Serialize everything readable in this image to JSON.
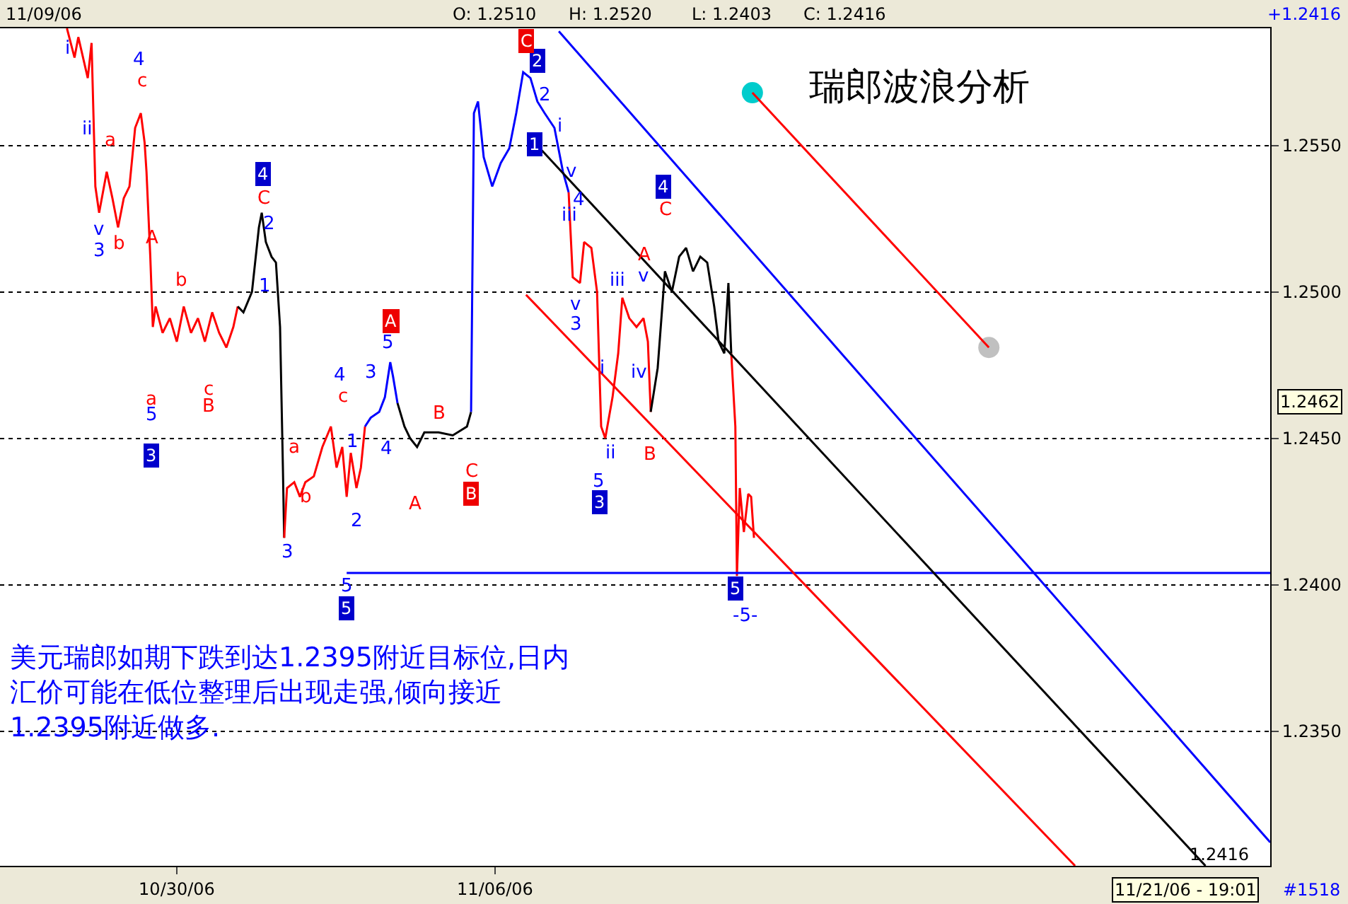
{
  "chart_data": {
    "type": "line",
    "title": "瑞郎波浪分析",
    "xlim": [
      "2006-10-26T02:40",
      "2006-11-23T01:10"
    ],
    "xticks": [
      {
        "value": "2006-10-30",
        "label": "10/30/06"
      },
      {
        "value": "2006-11-06",
        "label": "11/06/06"
      }
    ],
    "ylim": [
      1.2304,
      1.259
    ],
    "yticks": [
      {
        "value": 1.235,
        "label": "1.2350"
      },
      {
        "value": 1.24,
        "label": "1.2400"
      },
      {
        "value": 1.245,
        "label": "1.2450"
      },
      {
        "value": 1.25,
        "label": "1.2500"
      },
      {
        "value": 1.255,
        "label": "1.2550"
      }
    ],
    "grid": "y",
    "line_style": "solid",
    "series": [
      {
        "color": "#ff0000",
        "x": [
          "2006-10-27T14:00",
          "2006-10-27T18:00",
          "2006-10-27T20:00",
          "2006-10-28T01:00",
          "2006-10-28T03:00",
          "2006-10-28T05:00",
          "2006-10-28T07:00",
          "2006-10-28T11:00",
          "2006-10-28T14:00",
          "2006-10-28T17:00",
          "2006-10-28T20:00",
          "2006-10-28T23:00",
          "2006-10-29T02:00",
          "2006-10-29T05:00",
          "2006-10-29T07:00",
          "2006-10-29T08:00",
          "2006-10-29T10:00",
          "2006-10-29T11:20",
          "2006-10-29T12:50",
          "2006-10-29T16:30",
          "2006-10-29T20:20",
          "2006-10-30T00:00",
          "2006-10-30T03:40",
          "2006-10-30T07:30",
          "2006-10-30T11:10",
          "2006-10-30T14:50",
          "2006-10-30T18:40",
          "2006-10-30T22:20",
          "2006-10-31T02:10",
          "2006-10-31T05:50",
          "2006-10-31T08:10"
        ],
        "values": [
          1.259,
          1.258,
          1.2587,
          1.2573,
          1.2585,
          1.2536,
          1.2527,
          1.2541,
          1.2532,
          1.2522,
          1.2532,
          1.2536,
          1.2556,
          1.2561,
          1.2551,
          1.2541,
          1.2512,
          1.2488,
          1.2495,
          1.2486,
          1.2491,
          1.2483,
          1.2495,
          1.2486,
          1.2491,
          1.2483,
          1.2493,
          1.2486,
          1.2481,
          1.2488,
          1.2495
        ]
      },
      {
        "color": "#000000",
        "x": [
          "2006-10-31T08:10",
          "2006-10-31T11:10",
          "2006-10-31T15:40",
          "2006-10-31T19:20",
          "2006-10-31T20:50",
          "2006-10-31T23:00",
          "2006-11-01T02:00",
          "2006-11-01T04:20",
          "2006-11-01T06:30",
          "2006-11-01T08:00",
          "2006-11-01T08:40"
        ],
        "values": [
          1.2495,
          1.2493,
          1.25,
          1.2522,
          1.2527,
          1.2517,
          1.2512,
          1.251,
          1.2488,
          1.244,
          1.2416
        ]
      },
      {
        "color": "#ff0000",
        "x": [
          "2006-11-01T08:40",
          "2006-11-01T10:10",
          "2006-11-01T14:00",
          "2006-11-01T17:00",
          "2006-11-01T19:50",
          "2006-11-02T00:20",
          "2006-11-02T04:50",
          "2006-11-02T09:20",
          "2006-11-02T12:20",
          "2006-11-02T15:20",
          "2006-11-02T17:40",
          "2006-11-02T19:50",
          "2006-11-02T22:50",
          "2006-11-03T01:10",
          "2006-11-03T03:20"
        ],
        "values": [
          1.2416,
          1.2433,
          1.2435,
          1.243,
          1.2435,
          1.2437,
          1.2447,
          1.2454,
          1.244,
          1.2447,
          1.243,
          1.2445,
          1.2433,
          1.244,
          1.2454
        ]
      },
      {
        "color": "#0000ff",
        "x": [
          "2006-11-03T03:20",
          "2006-11-03T06:20",
          "2006-11-03T10:50",
          "2006-11-03T13:50",
          "2006-11-03T16:40",
          "2006-11-03T18:10",
          "2006-11-03T20:30"
        ],
        "values": [
          1.2454,
          1.2457,
          1.2459,
          1.2464,
          1.2476,
          1.2471,
          1.2462
        ]
      },
      {
        "color": "#000000",
        "x": [
          "2006-11-03T20:30",
          "2006-11-04T00:10",
          "2006-11-04T03:10",
          "2006-11-04T06:50",
          "2006-11-04T10:40",
          "2006-11-04T18:10",
          "2006-11-05T01:40",
          "2006-11-05T09:10",
          "2006-11-05T11:20"
        ],
        "values": [
          1.2462,
          1.2454,
          1.245,
          1.2447,
          1.2452,
          1.2452,
          1.2451,
          1.2454,
          1.2459
        ]
      },
      {
        "color": "#0000ff",
        "x": [
          "2006-11-05T11:20",
          "2006-11-05T12:50",
          "2006-11-05T15:00",
          "2006-11-05T18:00",
          "2006-11-05T22:30",
          "2006-11-06T03:00",
          "2006-11-06T07:30",
          "2006-11-06T11:10",
          "2006-11-06T14:50",
          "2006-11-06T18:40",
          "2006-11-06T22:20",
          "2006-11-07T02:10",
          "2006-11-07T07:20",
          "2006-11-07T11:50",
          "2006-11-07T14:50"
        ],
        "values": [
          1.2459,
          1.2561,
          1.2565,
          1.2546,
          1.2536,
          1.2544,
          1.2549,
          1.2561,
          1.2575,
          1.2573,
          1.2565,
          1.2561,
          1.2556,
          1.2541,
          1.2534
        ]
      },
      {
        "color": "#ff0000",
        "x": [
          "2006-11-07T14:50",
          "2006-11-07T17:00",
          "2006-11-07T20:50",
          "2006-11-07T23:00",
          "2006-11-08T02:50",
          "2006-11-08T05:50",
          "2006-11-08T08:00",
          "2006-11-08T10:10",
          "2006-11-08T14:00",
          "2006-11-08T17:00",
          "2006-11-08T19:10",
          "2006-11-08T22:50",
          "2006-11-09T02:40",
          "2006-11-09T06:20",
          "2006-11-09T08:40",
          "2006-11-09T10:10"
        ],
        "values": [
          1.2534,
          1.2505,
          1.2503,
          1.2517,
          1.2515,
          1.25,
          1.2454,
          1.245,
          1.2464,
          1.2479,
          1.2498,
          1.2491,
          1.2488,
          1.2491,
          1.2483,
          1.2459
        ]
      },
      {
        "color": "#000000",
        "x": [
          "2006-11-09T10:10",
          "2006-11-09T13:50",
          "2006-11-09T17:40",
          "2006-11-09T21:20",
          "2006-11-10T01:10",
          "2006-11-10T04:50",
          "2006-11-10T08:30",
          "2006-11-10T12:20",
          "2006-11-10T16:00",
          "2006-11-10T19:40",
          "2006-11-10T22:00",
          "2006-11-11T01:00",
          "2006-11-11T03:10",
          "2006-11-11T04:40"
        ],
        "values": [
          1.2459,
          1.2474,
          1.2507,
          1.25,
          1.2512,
          1.2515,
          1.2507,
          1.2512,
          1.251,
          1.2495,
          1.2483,
          1.2479,
          1.2503,
          1.2479
        ]
      },
      {
        "color": "#ff0000",
        "x": [
          "2006-11-11T04:40",
          "2006-11-11T06:50",
          "2006-11-11T07:40",
          "2006-11-11T09:10",
          "2006-11-11T11:20",
          "2006-11-11T13:40",
          "2006-11-11T15:10",
          "2006-11-11T16:40"
        ],
        "values": [
          1.2479,
          1.2454,
          1.2403,
          1.2433,
          1.2418,
          1.2431,
          1.243,
          1.2416
        ]
      },
      {
        "color": "#0000ff",
        "x": [
          "2006-11-02T17:40",
          "2006-11-23T01:10"
        ],
        "values": [
          1.2404,
          1.2404
        ]
      },
      {
        "color": "#0000ff",
        "x": [
          "2006-11-07T09:40",
          "2006-11-23T01:10"
        ],
        "values": [
          1.2589,
          1.2312
        ]
      },
      {
        "color": "#000000",
        "x": [
          "2006-11-06T20:50",
          "2006-11-21T15:00"
        ],
        "values": [
          1.2551,
          1.2304
        ]
      },
      {
        "color": "#ff0000",
        "x": [
          "2006-11-06T16:20",
          "2006-11-18T18:10"
        ],
        "values": [
          1.2499,
          1.2304
        ]
      },
      {
        "color": "#ff0000",
        "x": [
          "2006-11-11T15:50",
          "2006-11-16T20:40"
        ],
        "values": [
          1.2568,
          1.2481
        ]
      },
      {
        "type": "scatter",
        "marker": "circle",
        "color": "#00cccc",
        "x": [
          "2006-11-11T15:50"
        ],
        "values": [
          1.2568
        ]
      },
      {
        "type": "scatter",
        "marker": "circle",
        "color": "#c0c0c0",
        "x": [
          "2006-11-16T20:40"
        ],
        "values": [
          1.2481
        ]
      }
    ],
    "annotations": [
      "11/09/06",
      "O: 1.2510",
      "H: 1.2520",
      "L: 1.2403",
      "C: 1.2416",
      "+1.2416",
      "1.2462",
      "1.2416",
      "11/21/06 - 19:01",
      "#1518",
      "美元瑞郎如期下跌到达1.2395附近目标位,日内汇价可能在低位整理后出现走强,倾向接近1.2395附近做多.",
      "i",
      "ii",
      "v",
      "3",
      "4",
      "5",
      "2",
      "1",
      "3",
      "4",
      "3",
      "5",
      "1",
      "2",
      "4",
      "5",
      "2",
      "i",
      "v",
      "iii",
      "4",
      "v",
      "3",
      "iii",
      "v",
      "i",
      "ii",
      "iv",
      "5",
      "-5-",
      "c",
      "a",
      "b",
      "A",
      "a",
      "b",
      "c",
      "B",
      "C",
      "a",
      "b",
      "c",
      "A",
      "B",
      "C",
      "A",
      "C",
      "B",
      "4",
      "3",
      "5",
      "1",
      "2",
      "3",
      "4",
      "5",
      "A",
      "B",
      "C"
    ]
  }
}
